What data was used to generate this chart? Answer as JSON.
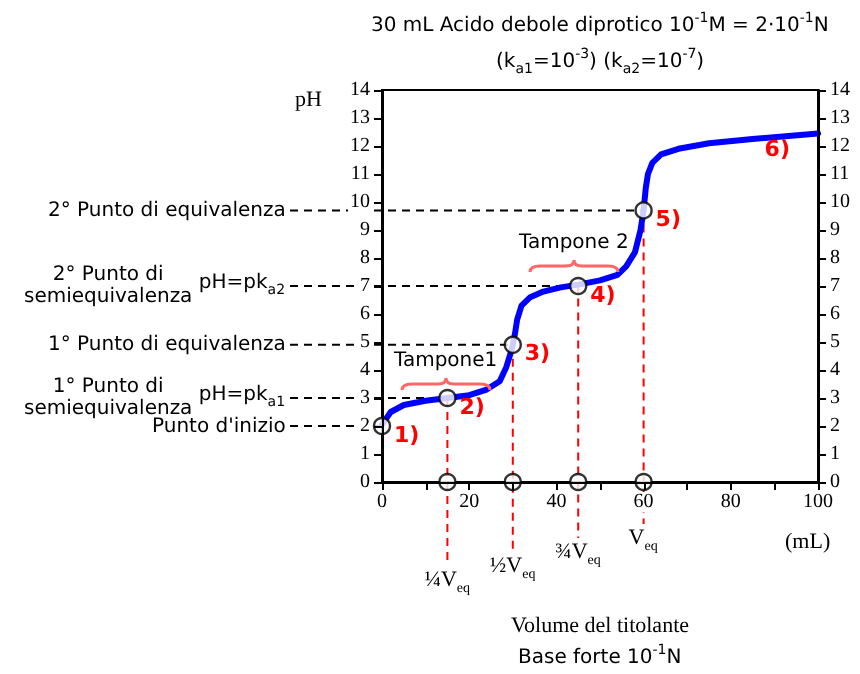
{
  "chart_data": {
    "type": "line",
    "title": "30 mL Acido debole diprotico  10$^{-1}$M = 2·10$^{-1}$N",
    "subtitle": "(k$_{a1}$=10$^{-3}$)  (k$_{a2}$=10$^{-7}$)",
    "xlabel": "Volume del titolante",
    "ylabel": "pH",
    "xlim": [
      0,
      100
    ],
    "xticks": [
      0,
      {
        "value": 10,
        "label": null
      },
      20,
      {
        "value": 30,
        "label": null
      },
      40,
      {
        "value": 50,
        "label": null
      },
      60,
      {
        "value": 70,
        "label": null
      },
      80,
      {
        "value": 90,
        "label": null
      },
      100
    ],
    "ylim": [
      0,
      14
    ],
    "yticks": [
      0,
      1,
      2,
      3,
      4,
      5,
      6,
      7,
      8,
      9,
      10,
      11,
      12,
      13,
      14
    ],
    "y2lim": [
      0,
      14
    ],
    "y2ticks": [
      0,
      1,
      2,
      3,
      4,
      5,
      6,
      7,
      8,
      9,
      10,
      11,
      12,
      13,
      14
    ],
    "grid": false,
    "series": [
      {
        "color": "#0000ff",
        "marker": "none",
        "line_style": "solid",
        "x": [
          0,
          2,
          5,
          10,
          15,
          20,
          24,
          27,
          28.5,
          29.5,
          30,
          30.5,
          31,
          32,
          34,
          37,
          41,
          45,
          50,
          54,
          56,
          58,
          59.3,
          60,
          60.5,
          61,
          62,
          64,
          68,
          75,
          85,
          100
        ],
        "values": [
          2.05,
          2.5,
          2.75,
          2.9,
          3.0,
          3.1,
          3.3,
          3.6,
          4.1,
          4.6,
          4.9,
          5.3,
          5.8,
          6.3,
          6.6,
          6.8,
          6.95,
          7.05,
          7.2,
          7.4,
          7.7,
          8.2,
          9.0,
          9.7,
          10.5,
          11.0,
          11.4,
          11.7,
          11.9,
          12.1,
          12.25,
          12.45
        ]
      },
      {
        "type": "scatter",
        "color": "#000000",
        "marker": "circle",
        "x": [
          0,
          15,
          30,
          45,
          60,
          15,
          30,
          45,
          60
        ],
        "values": [
          2,
          3,
          4.9,
          7,
          9.7,
          0,
          0,
          0,
          0
        ]
      }
    ],
    "ref_lines": [
      {
        "axis": "y",
        "value": 2,
        "label": "Punto d'inizio",
        "color": "#000000",
        "line_style": "dashed"
      },
      {
        "axis": "y",
        "value": 3,
        "label": "1° Punto di\nsemiequivalenza  pH=pk$_{a1}$",
        "color": "#000000",
        "line_style": "dashed"
      },
      {
        "axis": "y",
        "value": 4.9,
        "label": "1° Punto di equivalenza",
        "color": "#000000",
        "line_style": "dashed"
      },
      {
        "axis": "y",
        "value": 7,
        "label": "2° Punto di\nsemiequivalenza  pH=pk$_{a2}$",
        "color": "#000000",
        "line_style": "dashed"
      },
      {
        "axis": "y",
        "value": 9.7,
        "label": "2° Punto di equivalenza",
        "color": "#000000",
        "line_style": "dashed"
      },
      {
        "axis": "x",
        "value": 15,
        "label": "¼V$_{eq}$",
        "color": "#ff0000",
        "line_style": "dashed"
      },
      {
        "axis": "x",
        "value": 30,
        "label": "½V$_{eq}$",
        "color": "#ff0000",
        "line_style": "dashed"
      },
      {
        "axis": "x",
        "value": 45,
        "label": "¾V$_{eq}$",
        "color": "#ff0000",
        "line_style": "dashed"
      },
      {
        "axis": "x",
        "value": 60,
        "label": "V$_{eq}$",
        "color": "#ff0000",
        "line_style": "dashed"
      }
    ],
    "annotations": [
      {
        "text": "1)",
        "x": 0,
        "y": 2
      },
      {
        "text": "2)",
        "x": 15,
        "y": 3
      },
      {
        "text": "3)",
        "x": 30,
        "y": 4.9
      },
      {
        "text": "4)",
        "x": 45,
        "y": 7
      },
      {
        "text": "5)",
        "x": 60,
        "y": 9.7
      },
      {
        "text": "6)",
        "x": 85,
        "y": 12.25
      },
      "Tampone1",
      "Tampone 2",
      "(mL)",
      "Base forte 10$^{-1}$N"
    ]
  }
}
